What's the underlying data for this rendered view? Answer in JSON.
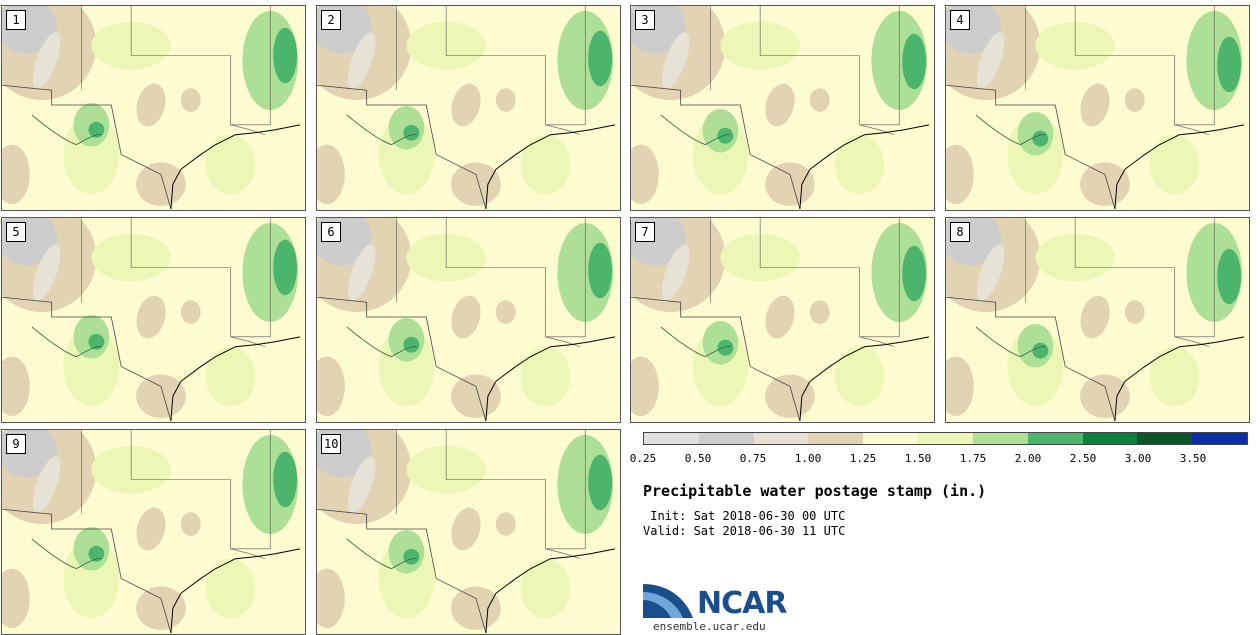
{
  "panels": [
    {
      "label": "1"
    },
    {
      "label": "2"
    },
    {
      "label": "3"
    },
    {
      "label": "4"
    },
    {
      "label": "5"
    },
    {
      "label": "6"
    },
    {
      "label": "7"
    },
    {
      "label": "8"
    },
    {
      "label": "9"
    },
    {
      "label": "10"
    }
  ],
  "colorbar": {
    "ticks": [
      "0.25",
      "0.50",
      "0.75",
      "1.00",
      "1.25",
      "1.50",
      "1.75",
      "2.00",
      "2.50",
      "3.00",
      "3.50"
    ],
    "colors": [
      "#e0e0e0",
      "#cdcdcd",
      "#e6e2d6",
      "#e2d3b3",
      "#fdfbd0",
      "#ecf7b6",
      "#aedf96",
      "#4cb56c",
      "#0c7f3a",
      "#0d5628",
      "#0b2fa8"
    ]
  },
  "title": "Precipitable water postage stamp (in.)",
  "init": " Init: Sat 2018-06-30 00 UTC",
  "valid": "Valid: Sat 2018-06-30 11 UTC",
  "logo": {
    "text": "NCAR",
    "url": "ensemble.ucar.edu"
  }
}
